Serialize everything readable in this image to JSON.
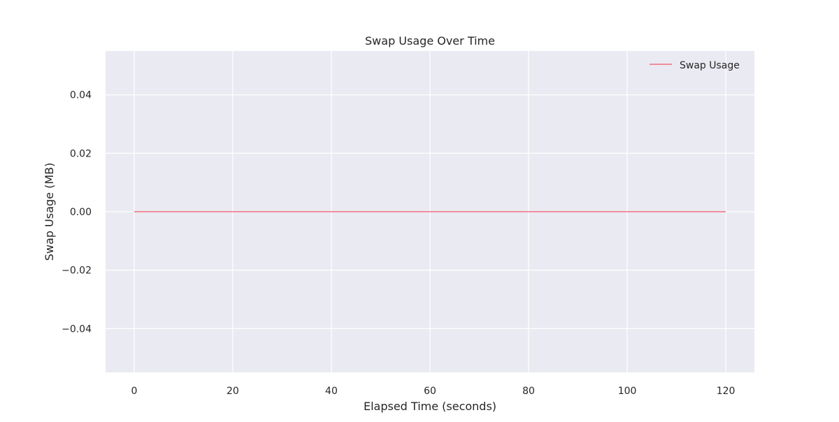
{
  "chart_data": {
    "type": "line",
    "title": "Swap Usage Over Time",
    "xlabel": "Elapsed Time (seconds)",
    "ylabel": "Swap Usage (MB)",
    "xlim": [
      -5.8,
      125.8
    ],
    "ylim": [
      -0.055,
      0.055
    ],
    "x_ticks": [
      0,
      20,
      40,
      60,
      80,
      100,
      120
    ],
    "x_tick_labels": [
      "0",
      "20",
      "40",
      "60",
      "80",
      "100",
      "120"
    ],
    "y_ticks": [
      -0.04,
      -0.02,
      0.0,
      0.02,
      0.04
    ],
    "y_tick_labels": [
      "−0.04",
      "−0.02",
      "0.00",
      "0.02",
      "0.04"
    ],
    "grid": true,
    "legend_position": "top-right",
    "series": [
      {
        "name": "Swap Usage",
        "color": "#f07080",
        "x": [
          0,
          120
        ],
        "y": [
          0,
          0
        ]
      }
    ],
    "colors": {
      "background": "#eaeaf2",
      "grid": "#ffffff",
      "text": "#262626"
    }
  }
}
